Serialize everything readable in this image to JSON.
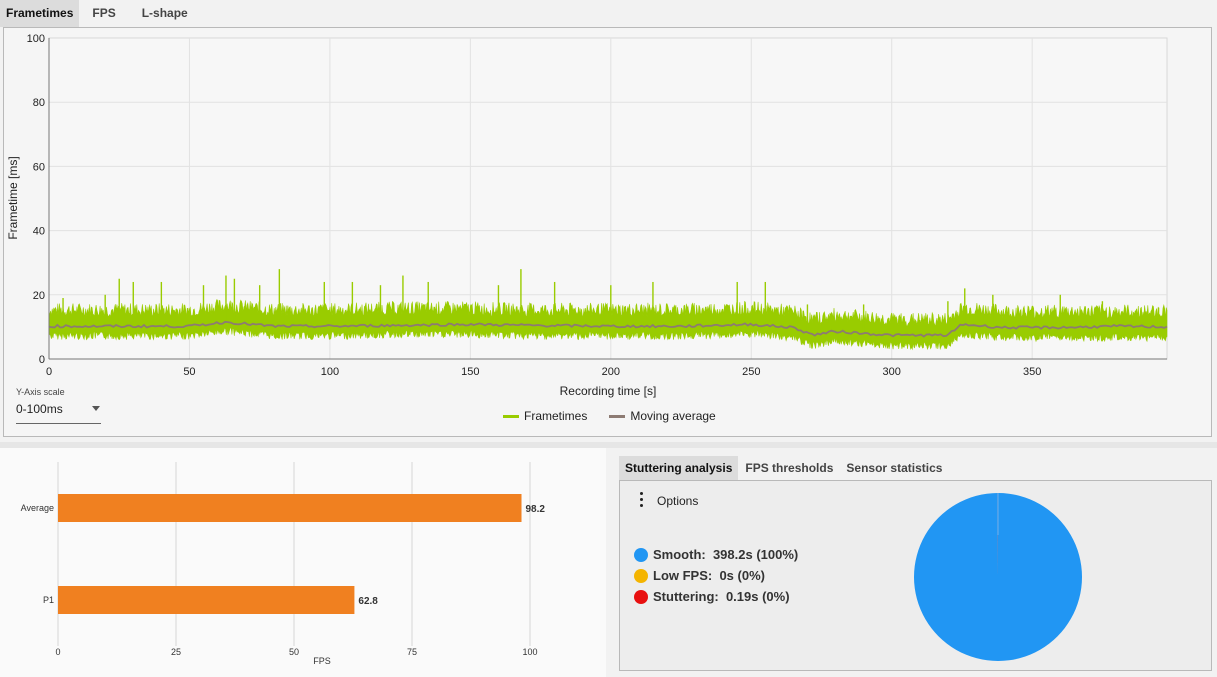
{
  "tabs_top": [
    {
      "label": "Frametimes",
      "active": true
    },
    {
      "label": "FPS",
      "active": false
    },
    {
      "label": "L-shape",
      "active": false
    }
  ],
  "y_axis_scale": {
    "label": "Y-Axis scale",
    "value": "0-100ms"
  },
  "colors": {
    "frametimes": "#99cc00",
    "moving_average": "#8d7b73",
    "bar": "#f08020",
    "smooth": "#2196f3",
    "low_fps": "#f4b400",
    "stuttering": "#e81010"
  },
  "chart_data": [
    {
      "type": "line",
      "xlabel": "Recording time [s]",
      "ylabel": "Frametime [ms]",
      "xlim": [
        0,
        398
      ],
      "ylim": [
        0,
        100
      ],
      "xticks": [
        0,
        50,
        100,
        150,
        200,
        250,
        300,
        350
      ],
      "yticks": [
        0,
        20,
        40,
        60,
        80,
        100
      ],
      "grid": true,
      "legend": "bottom-center",
      "series": [
        {
          "name": "Frametimes",
          "x": [
            0,
            25,
            50,
            63,
            80,
            100,
            125,
            150,
            170,
            200,
            225,
            250,
            265,
            272,
            280,
            300,
            320,
            325,
            340,
            360,
            380,
            398
          ],
          "y": [
            10.5,
            10.5,
            10.5,
            12,
            10.5,
            10.5,
            11,
            11,
            10.5,
            10.5,
            10.5,
            11,
            10,
            7.5,
            9,
            7.5,
            7.5,
            11,
            10,
            10,
            10,
            10
          ]
        },
        {
          "name": "Moving average",
          "x": [
            0,
            25,
            50,
            63,
            80,
            100,
            125,
            150,
            170,
            200,
            225,
            250,
            265,
            272,
            280,
            300,
            320,
            325,
            340,
            360,
            380,
            398
          ],
          "y": [
            10.2,
            10.2,
            10.2,
            11.5,
            10.2,
            10.2,
            10.5,
            10.8,
            10.5,
            10.2,
            10.2,
            10.8,
            9.8,
            7.5,
            8.6,
            7.4,
            7.4,
            10.8,
            9.8,
            9.8,
            10.2,
            10
          ]
        }
      ],
      "spikes": [
        [
          5,
          19
        ],
        [
          20,
          20
        ],
        [
          25,
          25
        ],
        [
          30,
          24
        ],
        [
          40,
          24
        ],
        [
          55,
          23
        ],
        [
          63,
          26
        ],
        [
          66,
          25
        ],
        [
          75,
          23
        ],
        [
          82,
          28
        ],
        [
          98,
          24
        ],
        [
          108,
          24
        ],
        [
          118,
          23
        ],
        [
          126,
          26
        ],
        [
          135,
          24
        ],
        [
          160,
          23
        ],
        [
          168,
          28
        ],
        [
          180,
          24
        ],
        [
          200,
          23
        ],
        [
          215,
          24
        ],
        [
          245,
          24
        ],
        [
          255,
          24
        ],
        [
          270,
          17
        ],
        [
          290,
          17
        ],
        [
          320,
          18
        ],
        [
          326,
          22
        ],
        [
          336,
          20
        ],
        [
          360,
          20
        ],
        [
          375,
          18
        ],
        [
          395,
          16
        ]
      ]
    },
    {
      "type": "bar",
      "orientation": "horizontal",
      "categories": [
        "Average",
        "P1"
      ],
      "values": [
        98.2,
        62.8
      ],
      "xlabel": "FPS",
      "xlim": [
        0,
        100
      ],
      "xticks": [
        0,
        25,
        50,
        75,
        100
      ],
      "grid": true
    },
    {
      "type": "pie",
      "categories": [
        "Smooth",
        "Low FPS",
        "Stuttering"
      ],
      "values": [
        398.2,
        0,
        0.19
      ],
      "legend": "left"
    }
  ],
  "tabs_bottom": [
    {
      "label": "Stuttering analysis",
      "active": true
    },
    {
      "label": "FPS thresholds",
      "active": false
    },
    {
      "label": "Sensor statistics",
      "active": false
    }
  ],
  "stutter": {
    "options_label": "Options",
    "rows": [
      {
        "label": "Smooth:",
        "value": "398.2s (100%)"
      },
      {
        "label": "Low FPS:",
        "value": "0s (0%)"
      },
      {
        "label": "Stuttering:",
        "value": "0.19s (0%)"
      }
    ]
  }
}
